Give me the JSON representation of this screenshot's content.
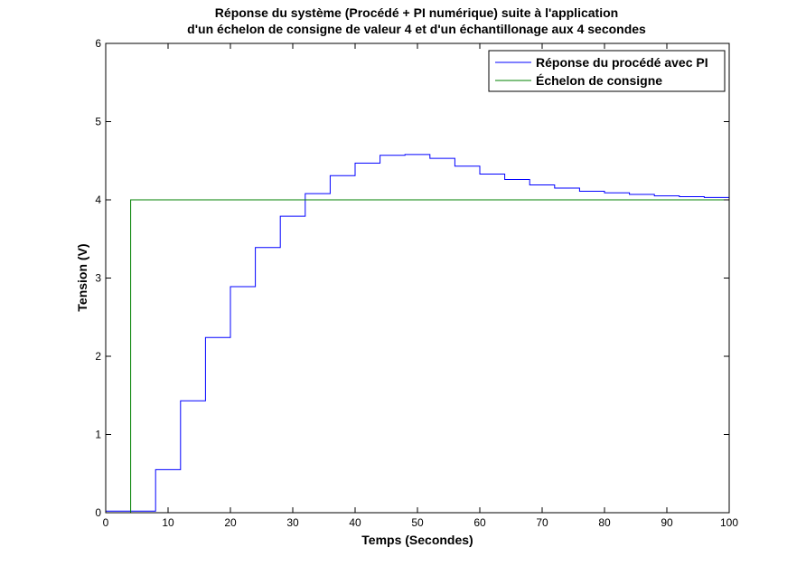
{
  "chart_data": {
    "type": "line",
    "title": [
      "Réponse du système (Procédé + PI numérique) suite à l'application",
      "d'un échelon de consigne de valeur 4 et d'un échantillonage aux 4 secondes"
    ],
    "xlabel": "Temps (Secondes)",
    "ylabel": "Tension (V)",
    "xlim": [
      0,
      100
    ],
    "ylim": [
      0,
      6
    ],
    "xticks": [
      0,
      10,
      20,
      30,
      40,
      50,
      60,
      70,
      80,
      90,
      100
    ],
    "yticks": [
      0,
      1,
      2,
      3,
      4,
      5,
      6
    ],
    "grid": false,
    "legend_position": "top-right",
    "series": [
      {
        "name": "Réponse du procédé avec PI",
        "color": "#0000ff",
        "style": "stairs",
        "x": [
          0,
          4,
          8,
          12,
          16,
          20,
          24,
          28,
          32,
          36,
          40,
          44,
          48,
          52,
          56,
          60,
          64,
          68,
          72,
          76,
          80,
          84,
          88,
          92,
          96,
          100
        ],
        "y": [
          0.02,
          0.02,
          0.55,
          1.43,
          2.24,
          2.89,
          3.39,
          3.79,
          4.08,
          4.31,
          4.47,
          4.57,
          4.58,
          4.53,
          4.43,
          4.33,
          4.26,
          4.19,
          4.15,
          4.11,
          4.09,
          4.07,
          4.05,
          4.04,
          4.03,
          4.03
        ]
      },
      {
        "name": "Échelon de consigne",
        "color": "#008000",
        "style": "step",
        "x": [
          0,
          4,
          4,
          100
        ],
        "y": [
          0,
          0,
          4,
          4
        ]
      }
    ]
  }
}
